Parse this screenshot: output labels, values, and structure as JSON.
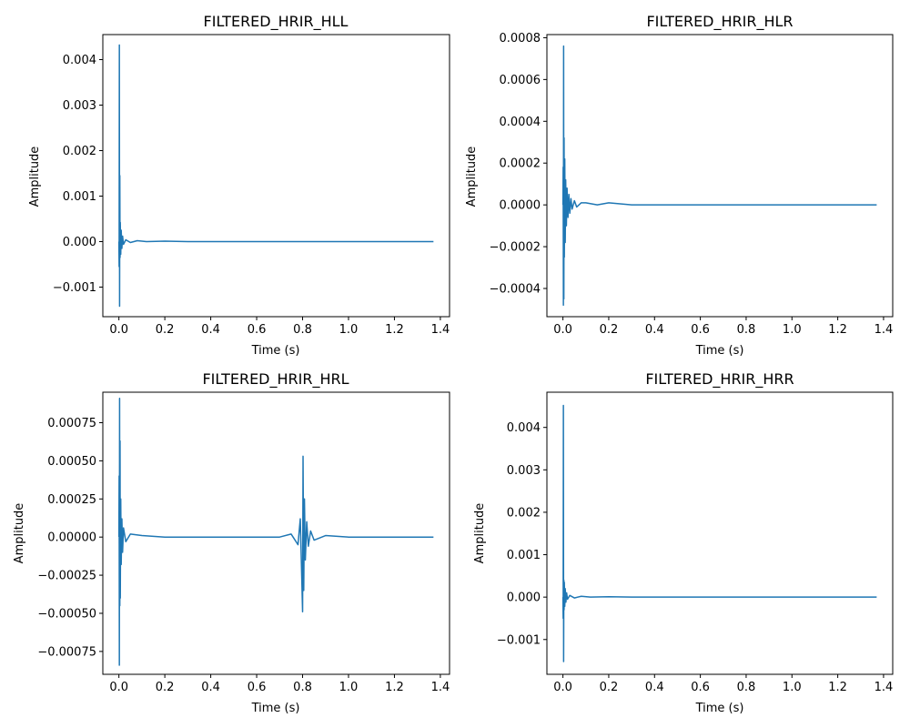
{
  "chart_data": [
    {
      "type": "line",
      "title": "FILTERED_HRIR_HLL",
      "xlabel": "Time (s)",
      "ylabel": "Amplitude",
      "xlim": [
        -0.07,
        1.44
      ],
      "ylim": [
        -0.00165,
        0.00455
      ],
      "xticks": [
        0.0,
        0.2,
        0.4,
        0.6,
        0.8,
        1.0,
        1.2,
        1.4
      ],
      "xtick_labels": [
        "0.0",
        "0.2",
        "0.4",
        "0.6",
        "0.8",
        "1.0",
        "1.2",
        "1.4"
      ],
      "yticks": [
        -0.001,
        0.0,
        0.001,
        0.002,
        0.003,
        0.004
      ],
      "ytick_labels": [
        "−0.001",
        "0.000",
        "0.001",
        "0.002",
        "0.003",
        "0.004"
      ],
      "grid": false,
      "color": "#1f77b4",
      "series": [
        {
          "x": [
            0.0,
            0.001,
            0.002,
            0.003,
            0.004,
            0.005,
            0.006,
            0.008,
            0.01,
            0.013,
            0.016,
            0.02,
            0.03,
            0.05,
            0.08,
            0.12,
            0.2,
            0.3,
            0.4,
            0.6,
            0.8,
            1.0,
            1.2,
            1.37
          ],
          "y": [
            0.0,
            -0.00055,
            0.00432,
            -0.00142,
            0.00145,
            -0.00035,
            0.00042,
            -0.00028,
            0.00025,
            -0.00015,
            0.00012,
            -6e-05,
            4e-05,
            -2e-05,
            2e-05,
            0.0,
            1e-05,
            0.0,
            0.0,
            0.0,
            0.0,
            0.0,
            0.0,
            0.0
          ]
        }
      ]
    },
    {
      "type": "line",
      "title": "FILTERED_HRIR_HLR",
      "xlabel": "Time (s)",
      "ylabel": "Amplitude",
      "xlim": [
        -0.07,
        1.44
      ],
      "ylim": [
        -0.000535,
        0.000815
      ],
      "xticks": [
        0.0,
        0.2,
        0.4,
        0.6,
        0.8,
        1.0,
        1.2,
        1.4
      ],
      "xtick_labels": [
        "0.0",
        "0.2",
        "0.4",
        "0.6",
        "0.8",
        "1.0",
        "1.2",
        "1.4"
      ],
      "yticks": [
        -0.0004,
        -0.0002,
        0.0,
        0.0002,
        0.0004,
        0.0006,
        0.0008
      ],
      "ytick_labels": [
        "−0.0004",
        "−0.0002",
        "0.0000",
        "0.0002",
        "0.0004",
        "0.0006",
        "0.0008"
      ],
      "grid": false,
      "color": "#1f77b4",
      "series": [
        {
          "x": [
            0.0,
            0.001,
            0.002,
            0.003,
            0.004,
            0.005,
            0.006,
            0.008,
            0.01,
            0.012,
            0.015,
            0.018,
            0.022,
            0.026,
            0.03,
            0.035,
            0.04,
            0.05,
            0.06,
            0.08,
            0.1,
            0.15,
            0.2,
            0.3,
            0.4,
            0.5,
            0.6,
            0.7,
            0.8,
            0.9,
            1.0,
            1.1,
            1.2,
            1.3,
            1.37
          ],
          "y": [
            0.0,
            0.00018,
            -0.00048,
            0.00076,
            -0.00045,
            0.00032,
            -0.00025,
            0.00022,
            -0.00018,
            0.00012,
            -0.0001,
            8e-05,
            -6e-05,
            5e-05,
            -4e-05,
            3e-05,
            -2e-05,
            2e-05,
            -1e-05,
            1e-05,
            1e-05,
            0.0,
            1e-05,
            0.0,
            0.0,
            0.0,
            0.0,
            0.0,
            0.0,
            0.0,
            0.0,
            0.0,
            0.0,
            0.0,
            0.0
          ]
        }
      ]
    },
    {
      "type": "line",
      "title": "FILTERED_HRIR_HRL",
      "xlabel": "Time (s)",
      "ylabel": "Amplitude",
      "xlim": [
        -0.07,
        1.44
      ],
      "ylim": [
        -0.0009,
        0.00095
      ],
      "xticks": [
        0.0,
        0.2,
        0.4,
        0.6,
        0.8,
        1.0,
        1.2,
        1.4
      ],
      "xtick_labels": [
        "0.0",
        "0.2",
        "0.4",
        "0.6",
        "0.8",
        "1.0",
        "1.2",
        "1.4"
      ],
      "yticks": [
        -0.00075,
        -0.0005,
        -0.00025,
        0.0,
        0.00025,
        0.0005,
        0.00075
      ],
      "ytick_labels": [
        "−0.00075",
        "−0.00050",
        "−0.00025",
        "0.00000",
        "0.00025",
        "0.00050",
        "0.00075"
      ],
      "grid": false,
      "color": "#1f77b4",
      "series": [
        {
          "x": [
            0.0,
            0.001,
            0.002,
            0.003,
            0.004,
            0.005,
            0.006,
            0.008,
            0.01,
            0.013,
            0.016,
            0.02,
            0.03,
            0.05,
            0.1,
            0.2,
            0.3,
            0.4,
            0.5,
            0.6,
            0.7,
            0.75,
            0.78,
            0.79,
            0.795,
            0.8,
            0.802,
            0.805,
            0.808,
            0.812,
            0.818,
            0.825,
            0.835,
            0.85,
            0.9,
            1.0,
            1.1,
            1.2,
            1.3,
            1.37
          ],
          "y": [
            0.0,
            0.0004,
            -0.00084,
            0.00091,
            -0.00045,
            0.00063,
            -0.0004,
            0.00025,
            -0.00018,
            0.00012,
            -0.0001,
            6e-05,
            -3e-05,
            2e-05,
            1e-05,
            0.0,
            0.0,
            0.0,
            0.0,
            0.0,
            0.0,
            2e-05,
            -5e-05,
            0.00012,
            -0.00018,
            -0.00049,
            0.00053,
            -0.00035,
            0.00025,
            -0.00015,
            0.0001,
            -6e-05,
            4e-05,
            -2e-05,
            1e-05,
            0.0,
            0.0,
            0.0,
            0.0,
            0.0
          ]
        }
      ]
    },
    {
      "type": "line",
      "title": "FILTERED_HRIR_HRR",
      "xlabel": "Time (s)",
      "ylabel": "Amplitude",
      "xlim": [
        -0.07,
        1.44
      ],
      "ylim": [
        -0.00182,
        0.00483
      ],
      "xticks": [
        0.0,
        0.2,
        0.4,
        0.6,
        0.8,
        1.0,
        1.2,
        1.4
      ],
      "xtick_labels": [
        "0.0",
        "0.2",
        "0.4",
        "0.6",
        "0.8",
        "1.0",
        "1.2",
        "1.4"
      ],
      "yticks": [
        -0.001,
        0.0,
        0.001,
        0.002,
        0.003,
        0.004
      ],
      "ytick_labels": [
        "−0.001",
        "0.000",
        "0.001",
        "0.002",
        "0.003",
        "0.004"
      ],
      "grid": false,
      "color": "#1f77b4",
      "series": [
        {
          "x": [
            0.0,
            0.001,
            0.002,
            0.003,
            0.004,
            0.005,
            0.006,
            0.008,
            0.01,
            0.013,
            0.016,
            0.02,
            0.03,
            0.05,
            0.08,
            0.12,
            0.2,
            0.3,
            0.4,
            0.6,
            0.8,
            1.0,
            1.2,
            1.37
          ],
          "y": [
            0.0,
            -0.0005,
            0.00452,
            -0.00152,
            0.0004,
            -0.0003,
            0.00035,
            -0.00022,
            0.0002,
            -0.00012,
            0.0001,
            -5e-05,
            4e-05,
            -2e-05,
            2e-05,
            0.0,
            1e-05,
            0.0,
            0.0,
            0.0,
            0.0,
            0.0,
            0.0,
            0.0
          ]
        }
      ]
    }
  ]
}
